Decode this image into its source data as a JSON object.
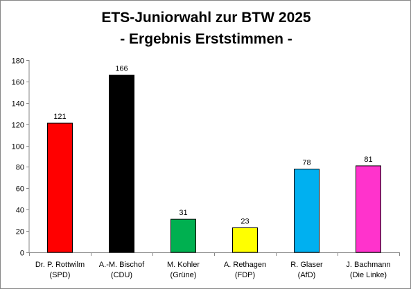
{
  "chart_data": {
    "type": "bar",
    "title": "ETS-Juniorwahl zur BTW 2025",
    "subtitle": "- Ergebnis Erststimmen -",
    "xlabel": "",
    "ylabel": "",
    "ylim": [
      0,
      180
    ],
    "yticks": [
      0,
      20,
      40,
      60,
      80,
      100,
      120,
      140,
      160,
      180
    ],
    "grid": false,
    "legend": "none",
    "categories": [
      [
        "Dr. P. Rottwilm",
        "(SPD)"
      ],
      [
        "A.-M. Bischof",
        "(CDU)"
      ],
      [
        "M. Kohler",
        "(Grüne)"
      ],
      [
        "A. Rethagen",
        "(FDP)"
      ],
      [
        "R. Glaser",
        "(AfD)"
      ],
      [
        "J. Bachmann",
        "(Die Linke)"
      ]
    ],
    "values": [
      121,
      166,
      31,
      23,
      78,
      81
    ],
    "colors": [
      "#ff0000",
      "#000000",
      "#00b050",
      "#ffff00",
      "#00b0f0",
      "#ff33cc"
    ]
  }
}
